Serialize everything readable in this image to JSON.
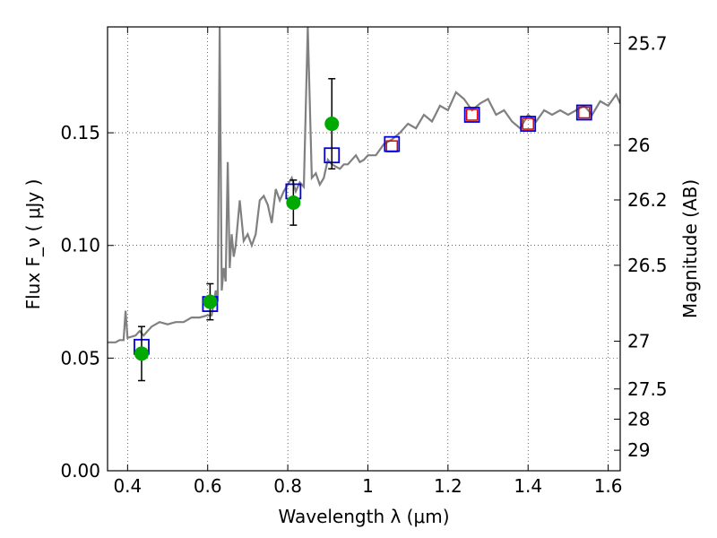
{
  "chart_data": {
    "type": "scatter",
    "xlabel": "Wavelength  λ (μm)",
    "ylabel": "Flux  F_ν  ( μJy )",
    "y2label": "Magnitude (AB)",
    "xlim": [
      0.35,
      1.63
    ],
    "ylim": [
      0.0,
      0.197
    ],
    "grid": true,
    "x_ticks": [
      0.4,
      0.6,
      0.8,
      1.0,
      1.2,
      1.4,
      1.6
    ],
    "x_tick_labels": [
      "0.4",
      "0.6",
      "0.8",
      "1",
      "1.2",
      "1.4",
      "1.6"
    ],
    "y_ticks": [
      0.0,
      0.05,
      0.1,
      0.15
    ],
    "y_tick_labels": [
      "0.00",
      "0.05",
      "0.10",
      "0.15"
    ],
    "y2_ticks": [
      {
        "label": "25.7",
        "flux": 0.1897
      },
      {
        "label": "26",
        "flux": 0.1445
      },
      {
        "label": "26.2",
        "flux": 0.1202
      },
      {
        "label": "26.5",
        "flux": 0.0912
      },
      {
        "label": "27",
        "flux": 0.0575
      },
      {
        "label": "27.5",
        "flux": 0.0363
      },
      {
        "label": "28",
        "flux": 0.0229
      },
      {
        "label": "29",
        "flux": 0.0091
      }
    ],
    "colors": {
      "template": "#808080",
      "observed": "#00aa00",
      "model_blue": "#0000dd",
      "model_red": "#dd0000",
      "errorbar": "#000000"
    },
    "series": [
      {
        "role": "template spectrum",
        "x": [
          0.35,
          0.37,
          0.38,
          0.39,
          0.395,
          0.4,
          0.42,
          0.43,
          0.44,
          0.46,
          0.48,
          0.5,
          0.52,
          0.54,
          0.56,
          0.58,
          0.6,
          0.61,
          0.62,
          0.625,
          0.63,
          0.635,
          0.64,
          0.645,
          0.65,
          0.655,
          0.66,
          0.665,
          0.67,
          0.68,
          0.69,
          0.7,
          0.71,
          0.72,
          0.73,
          0.74,
          0.75,
          0.76,
          0.77,
          0.78,
          0.79,
          0.8,
          0.81,
          0.82,
          0.83,
          0.84,
          0.85,
          0.86,
          0.87,
          0.88,
          0.89,
          0.9,
          0.91,
          0.92,
          0.93,
          0.94,
          0.95,
          0.96,
          0.97,
          0.98,
          0.99,
          1.0,
          1.02,
          1.04,
          1.06,
          1.08,
          1.1,
          1.12,
          1.14,
          1.16,
          1.18,
          1.2,
          1.22,
          1.24,
          1.26,
          1.28,
          1.3,
          1.32,
          1.34,
          1.36,
          1.38,
          1.4,
          1.42,
          1.44,
          1.46,
          1.48,
          1.5,
          1.52,
          1.54,
          1.56,
          1.58,
          1.6,
          1.62,
          1.63
        ],
        "y": [
          0.057,
          0.057,
          0.058,
          0.058,
          0.071,
          0.059,
          0.06,
          0.062,
          0.06,
          0.064,
          0.066,
          0.065,
          0.066,
          0.066,
          0.068,
          0.068,
          0.069,
          0.069,
          0.08,
          0.075,
          0.197,
          0.08,
          0.09,
          0.084,
          0.137,
          0.09,
          0.105,
          0.095,
          0.1,
          0.12,
          0.102,
          0.105,
          0.1,
          0.105,
          0.12,
          0.122,
          0.118,
          0.11,
          0.125,
          0.12,
          0.124,
          0.127,
          0.13,
          0.124,
          0.128,
          0.126,
          0.197,
          0.13,
          0.132,
          0.127,
          0.13,
          0.138,
          0.136,
          0.135,
          0.134,
          0.136,
          0.136,
          0.138,
          0.14,
          0.137,
          0.138,
          0.14,
          0.14,
          0.145,
          0.147,
          0.15,
          0.154,
          0.152,
          0.158,
          0.155,
          0.162,
          0.16,
          0.168,
          0.165,
          0.16,
          0.163,
          0.165,
          0.158,
          0.16,
          0.155,
          0.152,
          0.158,
          0.155,
          0.16,
          0.158,
          0.16,
          0.158,
          0.16,
          0.162,
          0.158,
          0.164,
          0.162,
          0.167,
          0.163
        ]
      },
      {
        "role": "observed photometry",
        "x": [
          0.435,
          0.606,
          0.814,
          0.91
        ],
        "y": [
          0.052,
          0.075,
          0.119,
          0.154
        ],
        "yerr": [
          0.012,
          0.008,
          0.01,
          0.02
        ]
      },
      {
        "role": "model photometry (blue squares)",
        "x": [
          0.435,
          0.606,
          0.814,
          0.91,
          1.06,
          1.26,
          1.4,
          1.54
        ],
        "y": [
          0.055,
          0.074,
          0.124,
          0.14,
          0.145,
          0.158,
          0.154,
          0.159
        ]
      },
      {
        "role": "model photometry (red squares)",
        "x": [
          1.06,
          1.26,
          1.4,
          1.54
        ],
        "y": [
          0.144,
          0.158,
          0.154,
          0.159
        ]
      }
    ]
  }
}
